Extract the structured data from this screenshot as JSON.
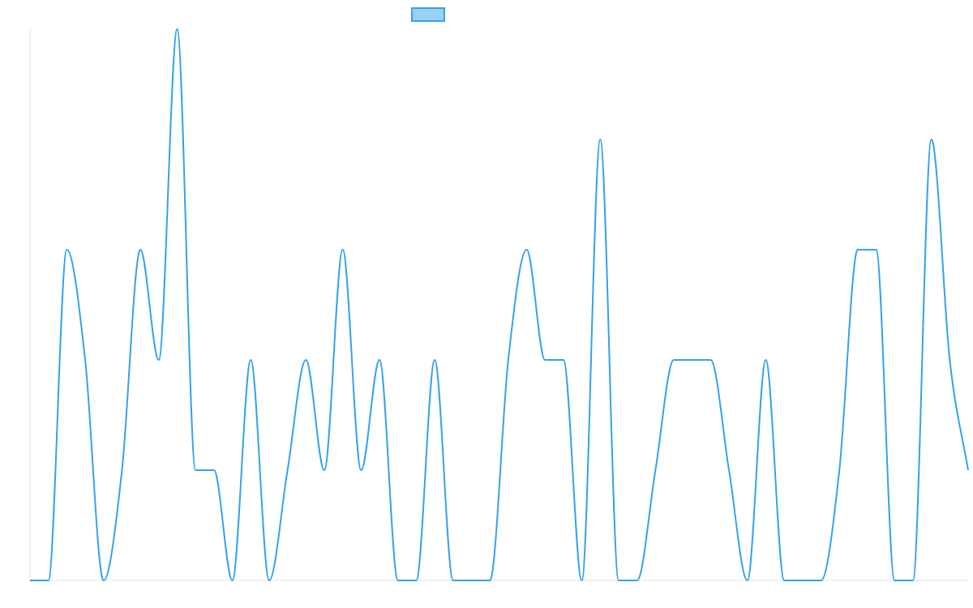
{
  "chart_data": {
    "type": "line",
    "series": [
      {
        "color": "#36a2eb",
        "values": [
          0,
          0,
          3,
          2,
          0,
          1,
          3,
          2,
          5,
          1,
          1,
          0,
          2,
          0,
          1,
          2,
          1,
          3,
          1,
          2,
          0,
          0,
          2,
          0,
          0,
          0,
          2,
          3,
          2,
          2,
          0,
          4,
          0,
          0,
          1,
          2,
          2,
          2,
          1,
          0,
          2,
          0,
          0,
          0,
          1,
          3,
          3,
          0,
          0,
          4,
          2,
          1
        ]
      }
    ],
    "ylim": [
      0,
      5
    ],
    "legend": "top"
  }
}
